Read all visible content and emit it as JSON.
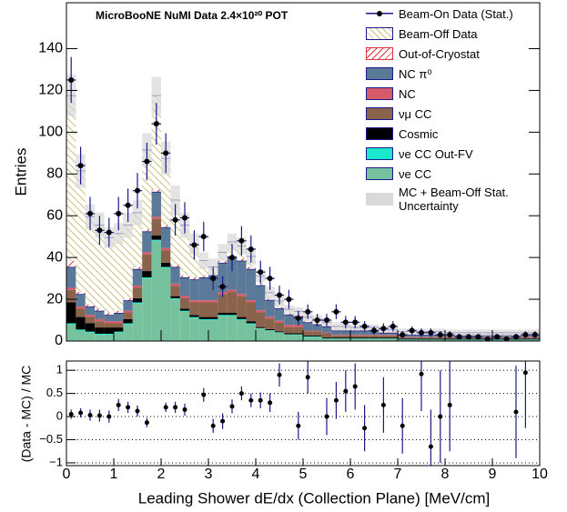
{
  "chart_data": [
    {
      "type": "histogram",
      "title": "MicroBooNE NuMI Data 2.4×10²⁰ POT",
      "ylabel": "Entries",
      "bins": [
        0,
        0.2,
        0.4,
        0.6,
        0.8,
        1,
        1.2,
        1.4,
        1.6,
        1.8,
        2,
        2.2,
        2.4,
        2.6,
        2.8,
        3,
        3.2,
        3.4,
        3.6,
        3.8,
        4,
        4.2,
        4.4,
        4.6,
        4.8,
        5,
        5.2,
        5.4,
        5.6,
        5.8,
        6,
        6.2,
        6.4,
        6.6,
        6.8,
        7,
        7.2,
        7.4,
        7.6,
        7.8,
        8,
        8.2,
        8.4,
        8.6,
        8.8,
        9,
        9.2,
        9.4,
        9.6,
        9.8,
        10
      ],
      "ylim": [
        0,
        162
      ],
      "yticks": [
        0,
        20,
        40,
        60,
        80,
        100,
        120,
        140
      ],
      "data": {
        "name": "Beam-On Data (Stat.)",
        "color": "#000000",
        "error_color": "#1a1a8c",
        "values": [
          125,
          84,
          61,
          53,
          52,
          61,
          65,
          72,
          86,
          104,
          90,
          58,
          59,
          46,
          50,
          30,
          26,
          40,
          48,
          44,
          33,
          30,
          22,
          20,
          11,
          14,
          10,
          10,
          14,
          9,
          9,
          7,
          5,
          6,
          7,
          3,
          5,
          4,
          4,
          3,
          3,
          2,
          2,
          2,
          1,
          2,
          1,
          2,
          3,
          3
        ],
        "errors": [
          11,
          9,
          8,
          7,
          7,
          8,
          8,
          8.5,
          9,
          10,
          9.5,
          7.5,
          7.5,
          7,
          7,
          5.5,
          5,
          6.5,
          7,
          6.5,
          5.5,
          5.5,
          4.5,
          4.5,
          3.5,
          3.5,
          3,
          3,
          3.5,
          3,
          3,
          2.5,
          2,
          2.5,
          2.5,
          1.7,
          2,
          2,
          2,
          1.7,
          1.7,
          1.4,
          1.4,
          1.4,
          1,
          1.4,
          1,
          1.4,
          1.7,
          1.7
        ]
      },
      "series": [
        {
          "name": "Beam-Off Data",
          "color": "#cdbf7e",
          "hatch": "backslash",
          "values": [
            79,
            58,
            42,
            40,
            36,
            37,
            35,
            26,
            38,
            45,
            32,
            31,
            24,
            16,
            7,
            3,
            4,
            6,
            6,
            5,
            4,
            3,
            3,
            2,
            2,
            2,
            2,
            1.5,
            1.5,
            1.5,
            1,
            1,
            1,
            1,
            1,
            1,
            1,
            1,
            1,
            1,
            0.5,
            0.5,
            0.5,
            0.5,
            0.5,
            0.5,
            0.5,
            0.5,
            0.5,
            0.5
          ]
        },
        {
          "name": "Out-of-Cryostat",
          "color": "#e0333f",
          "hatch": "slash",
          "values": [
            3,
            1,
            1,
            1,
            1,
            1,
            1,
            1,
            1,
            1,
            1,
            1,
            1,
            1,
            1,
            1,
            1,
            1,
            1,
            1,
            0.5,
            0.5,
            0.5,
            0.5,
            0.5,
            0.5,
            0.5,
            0.5,
            0.5,
            0.5,
            0.5,
            0.5,
            0.5,
            0.5,
            0.5,
            0.5,
            0.5,
            0.5,
            0.5,
            0.5,
            0.5,
            0.5,
            0.5,
            0.5,
            0.5,
            0.5,
            0.5,
            0.5,
            0.5,
            0.5
          ]
        },
        {
          "name": "NC π⁰",
          "color": "#5b7a99",
          "values": [
            10,
            6,
            4,
            4,
            3,
            4,
            5,
            8,
            10,
            12,
            10,
            8,
            9,
            10,
            11,
            12,
            14,
            16,
            16,
            15,
            12,
            8,
            6,
            5,
            4,
            4,
            3,
            3,
            2,
            2,
            2,
            2,
            2,
            1,
            1,
            1,
            1,
            1,
            1,
            1,
            1,
            1,
            1,
            1,
            1,
            1,
            1,
            1,
            1,
            1
          ]
        },
        {
          "name": "NC",
          "color": "#d65a68",
          "values": [
            1,
            1,
            1,
            1,
            1,
            1,
            1,
            1,
            1,
            1,
            1,
            1,
            1,
            1,
            1,
            1,
            1,
            1,
            1,
            1,
            1,
            1,
            1,
            1,
            1,
            0.3,
            0.3,
            0.3,
            0.3,
            0.3,
            0.3,
            0.3,
            0.3,
            0.3,
            0.3,
            0.3,
            0.3,
            0.3,
            0.3,
            0.3,
            0.3,
            0.3,
            0.3,
            0.3,
            0.3,
            0.3,
            0.3,
            0.3,
            0.3,
            0.3
          ]
        },
        {
          "name": "νμ CC",
          "color": "#8a634d",
          "values": [
            6,
            4,
            3,
            3,
            2,
            2,
            3,
            5,
            8,
            8,
            6,
            5,
            5,
            6,
            7,
            7,
            9,
            10,
            10,
            9,
            7,
            5,
            4,
            3,
            3,
            2,
            2,
            2,
            1,
            1,
            1,
            1,
            1,
            1,
            1,
            0.5,
            0.5,
            0.5,
            0.5,
            0.5,
            0.5,
            0.5,
            0.5,
            0.5,
            0.5,
            0.5,
            0.5,
            0.5,
            0.5,
            0.5
          ]
        },
        {
          "name": "Cosmic",
          "color": "#000000",
          "values": [
            10,
            6,
            4,
            3,
            3,
            2,
            2,
            2,
            3,
            2,
            2,
            1,
            1,
            1,
            1,
            1,
            1,
            1,
            1,
            1,
            0.5,
            0.5,
            0.5,
            0.5,
            0.5,
            0.5,
            0.5,
            0.5,
            0.5,
            0.5,
            0.5,
            0.5,
            0.5,
            0.5,
            0.5,
            0.5,
            0.5,
            0.5,
            0.5,
            0.5,
            0.5,
            0.5,
            0.5,
            0.5,
            0.5,
            0.5,
            0.5,
            0.5,
            0.5,
            0.5
          ]
        },
        {
          "name": "νe CC Out-FV",
          "color": "#19e8cf",
          "values": [
            0.5,
            0.5,
            0.5,
            0.5,
            0.5,
            0.5,
            0.5,
            0.5,
            0.5,
            0.5,
            0.5,
            0.5,
            0.5,
            0.5,
            0.5,
            0.5,
            0.5,
            0.5,
            0.5,
            0.5,
            0.2,
            0.2,
            0.2,
            0.2,
            0.2,
            0.2,
            0.2,
            0.2,
            0.2,
            0.2,
            0.2,
            0.2,
            0.2,
            0.2,
            0.2,
            0.2,
            0.2,
            0.2,
            0.2,
            0.2,
            0.2,
            0.2,
            0.2,
            0.2,
            0.2,
            0.2,
            0.2,
            0.2,
            0.2,
            0.2
          ]
        },
        {
          "name": "νe CC",
          "color": "#76c29e",
          "values": [
            8,
            5,
            4,
            3,
            3,
            4,
            8,
            18,
            30,
            48,
            35,
            20,
            14,
            11,
            10,
            10,
            12,
            12,
            10,
            8,
            6,
            5,
            4,
            3,
            3,
            2,
            2,
            1,
            1,
            1,
            1,
            1,
            1,
            1,
            1,
            0.5,
            0.5,
            0.5,
            0.5,
            0.5,
            0.5,
            0.5,
            0.5,
            0.5,
            0.5,
            0.5,
            0.5,
            0.5,
            0.5,
            0.5
          ]
        }
      ],
      "uncertainty": {
        "name": "MC + Beam-Off Stat. Uncertainty",
        "color": "#d9d9d9",
        "values": [
          10,
          8,
          6,
          6,
          5,
          5,
          6,
          6,
          8,
          9,
          8,
          7,
          6,
          5,
          4,
          4,
          4,
          4,
          4,
          4,
          3,
          3,
          3,
          2,
          2,
          2,
          2,
          2,
          2,
          2,
          1.5,
          1.5,
          1.5,
          1.5,
          1.5,
          1.5,
          1.5,
          1.5,
          1.5,
          1.5,
          1.5,
          1.5,
          1.5,
          1.5,
          1.5,
          1.5,
          1.5,
          1.5,
          1.5,
          1.5
        ]
      }
    },
    {
      "type": "errorbar",
      "xlabel": "Leading Shower dE/dx (Collection Plane) [MeV/cm]",
      "ylabel": "(Data - MC) / MC",
      "color": "#000000",
      "error_color": "#1a1a8c",
      "x": [
        0.1,
        0.3,
        0.5,
        0.7,
        0.9,
        1.1,
        1.3,
        1.5,
        1.7,
        2.1,
        2.3,
        2.5,
        2.9,
        3.1,
        3.3,
        3.5,
        3.7,
        3.9,
        4.1,
        4.3,
        4.5,
        4.9,
        5.1,
        5.5,
        5.7,
        5.9,
        6.1,
        6.3,
        6.7,
        7.1,
        7.5,
        7.7,
        7.9,
        8.1,
        9.5,
        9.7
      ],
      "values": [
        0.05,
        0.08,
        0.03,
        0.02,
        0,
        0.25,
        0.2,
        0.12,
        -0.13,
        0.2,
        0.2,
        0.15,
        0.47,
        -0.2,
        -0.1,
        0.22,
        0.5,
        0.35,
        0.35,
        0.3,
        0.9,
        -0.2,
        0.85,
        0,
        0.35,
        0.55,
        0.65,
        -0.25,
        0.25,
        -0.2,
        0.92,
        -0.65,
        0,
        0.25,
        0.1,
        0.95
      ],
      "errors": [
        0.1,
        0.1,
        0.12,
        0.13,
        0.13,
        0.13,
        0.12,
        0.12,
        0.1,
        0.1,
        0.12,
        0.13,
        0.15,
        0.15,
        0.17,
        0.15,
        0.15,
        0.15,
        0.17,
        0.2,
        0.25,
        0.3,
        0.35,
        0.4,
        0.4,
        0.45,
        0.5,
        0.5,
        0.6,
        0.6,
        0.8,
        0.8,
        1,
        1,
        1,
        1.2
      ],
      "xlim": [
        0,
        10
      ],
      "xticks": [
        0,
        1,
        2,
        3,
        4,
        5,
        6,
        7,
        8,
        9,
        10
      ],
      "ylim": [
        -1.06,
        1.2
      ],
      "yticks": [
        {
          "value": -1,
          "label": "−1"
        },
        {
          "value": -0.5,
          "label": "−0.5"
        },
        0,
        0.5,
        1
      ],
      "grid": true
    }
  ]
}
